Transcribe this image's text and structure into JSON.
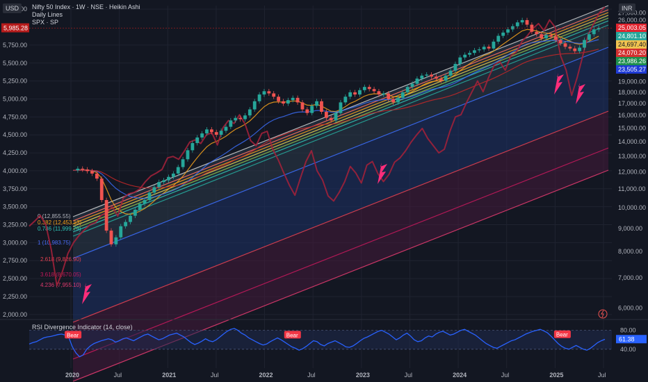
{
  "header": {
    "title": "Nifty 50 Index · 1W · NSE · Heikin Ashi",
    "line2": "Daily Lines",
    "line3": "SPX · SP"
  },
  "currency_left": "USD",
  "currency_right": "INR",
  "chart_data": {
    "type": "line",
    "x_ticks": [
      "2020",
      "Jul",
      "2021",
      "Jul",
      "2022",
      "Jul",
      "2023",
      "Jul",
      "2024",
      "Jul",
      "2025",
      "Jul"
    ],
    "left_axis": {
      "ticks": [
        "6,250.00",
        "5,750.00",
        "5,500.00",
        "5,250.00",
        "5,000.00",
        "4,750.00",
        "4,500.00",
        "4,250.00",
        "4,000.00",
        "3,750.00",
        "3,500.00",
        "3,250.00",
        "3,000.00",
        "2,750.00",
        "2,500.00",
        "2,250.00",
        "2,000.00"
      ],
      "tick_values": [
        6250,
        5750,
        5500,
        5250,
        5000,
        4750,
        4500,
        4250,
        4000,
        3750,
        3500,
        3250,
        3000,
        2750,
        2500,
        2250,
        2000
      ],
      "range": [
        1950,
        6300
      ],
      "current_label": "5,985.28",
      "current_value": 5985.28
    },
    "right_axis": {
      "ticks": [
        "27,000.00",
        "26,000.00",
        "22,000.00",
        "21,000.00",
        "20,000.00",
        "19,000.00",
        "18,000.00",
        "17,000.00",
        "16,000.00",
        "15,000.00",
        "14,000.00",
        "13,000.00",
        "12,000.00",
        "11,000.00",
        "10,000.00",
        "9,000.00",
        "8,000.00",
        "7,000.00",
        "6,000.00"
      ],
      "tick_values": [
        27000,
        26000,
        22000,
        21000,
        20000,
        19000,
        18000,
        17000,
        16000,
        15000,
        14000,
        13000,
        12000,
        11000,
        10000,
        9000,
        8000,
        7000,
        6000
      ],
      "range": [
        5700,
        28000
      ],
      "price_tags": [
        {
          "label": "25,003.05",
          "value": 25003.05,
          "color": "#e0242f"
        },
        {
          "label": "24,801.10",
          "value": 24801.1,
          "color": "#26a69a"
        },
        {
          "label": "24,697.40",
          "value": 24697.4,
          "color": "#f0c24f"
        },
        {
          "label": "24,070.20",
          "value": 24070.2,
          "color": "#d32f2f"
        },
        {
          "label": "23,986.26",
          "value": 23986.26,
          "color": "#1e8f4e"
        },
        {
          "label": "23,505.27",
          "value": 23505.27,
          "color": "#1f3bd6"
        }
      ]
    },
    "fib_labels": [
      {
        "label": "0 (12,855.55)",
        "color": "#b2b5be"
      },
      {
        "label": "0.382 (12,453.13)",
        "color": "#f7a21b"
      },
      {
        "label": "0.786 (11,999.79)",
        "color": "#2ec4b6"
      },
      {
        "label": "1 (10,983.75)",
        "color": "#4a6cf7"
      },
      {
        "label": "2.618 (9,826.90)",
        "color": "#e04050"
      },
      {
        "label": "3.618 (8,670.05)",
        "color": "#c2185b"
      },
      {
        "label": "4.236 (7,955.10)",
        "color": "#e03a6e"
      }
    ],
    "nifty_weekly_inr": [
      12100,
      12200,
      12150,
      12050,
      11900,
      11600,
      10400,
      8900,
      8300,
      8600,
      9100,
      9300,
      9600,
      9900,
      10200,
      10400,
      10800,
      11100,
      11400,
      11500,
      11700,
      11900,
      12300,
      12800,
      13400,
      13900,
      14300,
      14600,
      14900,
      14700,
      14500,
      14800,
      15100,
      15600,
      15800,
      15700,
      16000,
      16500,
      17200,
      17800,
      18100,
      17900,
      17600,
      17200,
      17000,
      17300,
      17500,
      17100,
      16500,
      16200,
      16800,
      17200,
      16300,
      15800,
      15600,
      16200,
      17100,
      17600,
      18000,
      17800,
      18200,
      18500,
      18300,
      18100,
      17800,
      17900,
      17400,
      17100,
      17500,
      18000,
      18500,
      18800,
      19300,
      19600,
      19700,
      19500,
      19300,
      19100,
      19600,
      20100,
      20800,
      21500,
      21800,
      22000,
      22300,
      22400,
      22700,
      22500,
      23300,
      24000,
      24400,
      24800,
      25200,
      25700,
      26000,
      25400,
      24500,
      24200,
      23700,
      24100,
      23900,
      23500,
      23100,
      22700,
      22500,
      22200,
      22600,
      23500,
      24200,
      24800,
      25000
    ],
    "spx_daily_usd": [
      3230,
      3300,
      3380,
      3250,
      2900,
      2400,
      2600,
      2850,
      3000,
      3100,
      3180,
      3250,
      3280,
      3380,
      3420,
      3500,
      3370,
      3620,
      3680,
      3700,
      3750,
      3850,
      3930,
      3970,
      4020,
      4180,
      4200,
      4160,
      4270,
      4400,
      4430,
      4380,
      4500,
      4530,
      4360,
      4600,
      4700,
      4660,
      4780,
      4650,
      4420,
      4350,
      4520,
      4550,
      4300,
      4150,
      3970,
      3800,
      3660,
      3900,
      4130,
      4280,
      4000,
      3870,
      3650,
      3580,
      3700,
      3850,
      4060,
      3970,
      3830,
      4080,
      4130,
      3960,
      3850,
      3950,
      4120,
      4180,
      4280,
      4400,
      4500,
      4590,
      4450,
      4350,
      4250,
      4300,
      4550,
      4750,
      4780,
      4950,
      5100,
      5250,
      5100,
      5300,
      5470,
      5520,
      5400,
      5600,
      5650,
      5800,
      5880,
      5980,
      6050,
      5950,
      6100,
      6000,
      5600,
      5400,
      5050,
      5300,
      5600,
      5900,
      6050,
      6200,
      6280
    ],
    "rsi": {
      "title": "RSI Divergence Indicator (14, close)",
      "levels": [
        80.0,
        40.0
      ],
      "level_labels": [
        "80.00",
        "40.00"
      ],
      "current_label": "61.38",
      "current": 61.38,
      "values": [
        51,
        54,
        56,
        60,
        64,
        66,
        67,
        69,
        71,
        72,
        70,
        65,
        45,
        32,
        24,
        28,
        40,
        47,
        52,
        55,
        58,
        60,
        62,
        60,
        55,
        58,
        62,
        64,
        61,
        58,
        62,
        66,
        70,
        72,
        68,
        64,
        60,
        62,
        66,
        70,
        72,
        74,
        70,
        66,
        60,
        54,
        50,
        53,
        57,
        62,
        58,
        56,
        60,
        66,
        72,
        78,
        82,
        84,
        80,
        74,
        70,
        64,
        60,
        56,
        52,
        49,
        51,
        56,
        60,
        64,
        60,
        55,
        50,
        45,
        42,
        38,
        41,
        46,
        52,
        58,
        56,
        50,
        47,
        52,
        55,
        58,
        54,
        50,
        45,
        44,
        47,
        52,
        58,
        63,
        66,
        70,
        74,
        78,
        80,
        76,
        72,
        66,
        60,
        64,
        70,
        74,
        68,
        60,
        56,
        58,
        64,
        68,
        66,
        72,
        76,
        78,
        74,
        70,
        72,
        76,
        80,
        82,
        78,
        74,
        70,
        64,
        58,
        52,
        48,
        44,
        42,
        46,
        50,
        54,
        58,
        60,
        64,
        68,
        72,
        75,
        78,
        80,
        82,
        79,
        75,
        68,
        60,
        52,
        46,
        42,
        40,
        44,
        48,
        44,
        40,
        38,
        42,
        48,
        54,
        58,
        61
      ],
      "bear_labels": [
        "Bear",
        "Bear",
        "Bear"
      ],
      "bear_index": [
        12,
        73,
        148
      ]
    }
  }
}
